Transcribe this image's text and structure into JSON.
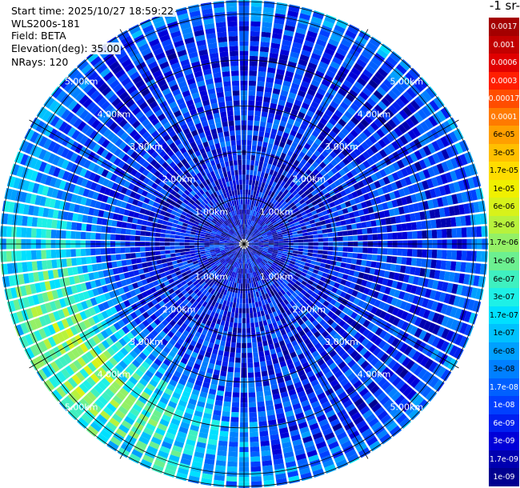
{
  "header": {
    "start_time": "Start time: 2025/10/27 18:59:22",
    "instrument": "WLS200s-181",
    "field": "Field: BETA",
    "elevation": "Elevation(deg): 35.00",
    "nrays": "NRays: 120"
  },
  "colorbar": {
    "unit_fragment": "-1 sr-",
    "ticks": [
      "0.0017",
      "0.001",
      "0.0006",
      "0.0003",
      "0.00017",
      "0.0001",
      "6e-05",
      "3e-05",
      "1.7e-05",
      "1e-05",
      "6e-06",
      "3e-06",
      "1.7e-06",
      "1e-06",
      "6e-07",
      "3e-07",
      "1.7e-07",
      "1e-07",
      "6e-08",
      "3e-08",
      "1.7e-08",
      "1e-08",
      "6e-09",
      "3e-09",
      "1.7e-09",
      "1e-09"
    ],
    "colors": [
      "#a40000",
      "#c20000",
      "#e00000",
      "#ff1e00",
      "#ff4d00",
      "#ff7a00",
      "#ff9f00",
      "#ffbf00",
      "#ffdc00",
      "#f0f000",
      "#d8f21a",
      "#b8f23c",
      "#94f066",
      "#6cf090",
      "#3ff0c0",
      "#1ef0e6",
      "#00e0ff",
      "#00c2ff",
      "#00a0ff",
      "#0080ff",
      "#0060ff",
      "#0040ff",
      "#0020f0",
      "#0000d8",
      "#0000b0",
      "#000090"
    ]
  },
  "chart_data": {
    "type": "heatmap",
    "projection": "polar-ppi",
    "max_range_km": 5.2,
    "ring_labels": [
      "1.00km",
      "2.00km",
      "3.00km",
      "4.00km",
      "5.00km"
    ],
    "ring_values_km": [
      1,
      2,
      3,
      4,
      5
    ],
    "nrays": 120,
    "gates": 52,
    "log_beta_range": [
      -9,
      -2.77
    ],
    "dominant_log_beta": {
      "near_field": -8.4,
      "mid": -8.1,
      "southwest_arc": -5.8
    }
  }
}
